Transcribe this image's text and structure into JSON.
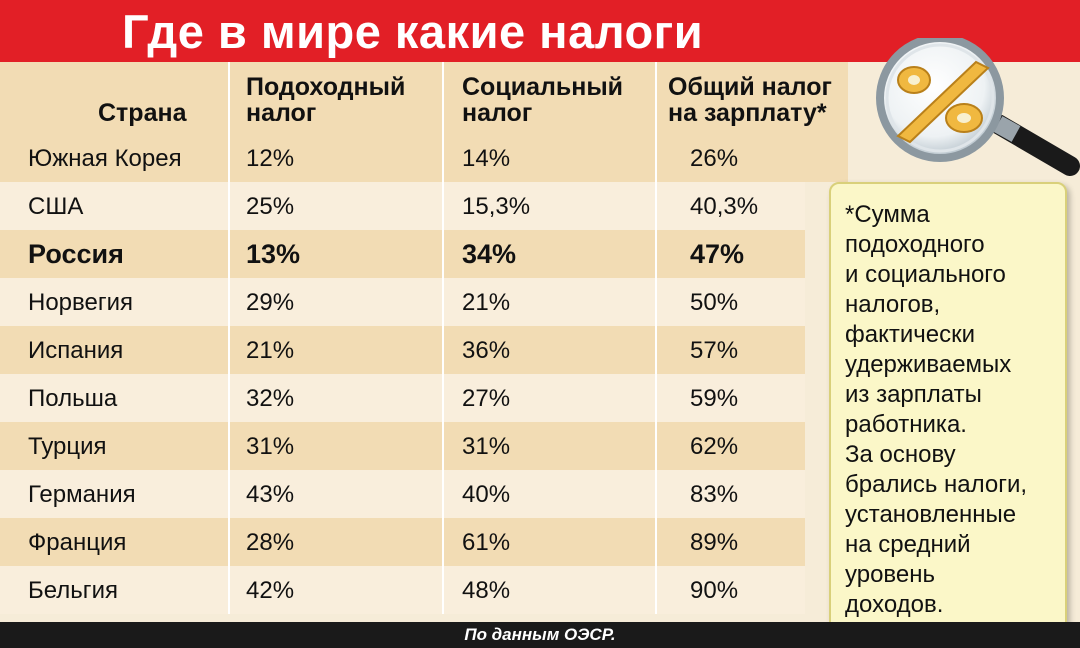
{
  "title": "Где в мире какие налоги",
  "source": "По данным ОЭСР.",
  "note": "*Сумма\nподоходного\nи социального\nналогов,\nфактически\nудерживаемых\nиз зарплаты\nработника.\nЗа основу\nбрались налоги,\nустановленные\nна средний\nуровень\nдоходов.",
  "colors": {
    "banner": "#e21f26",
    "row_dark": "#f2dcb4",
    "row_light": "#f9eedc",
    "note_bg": "#fbf7c8"
  },
  "icons": [
    "magnifier-percent-icon"
  ],
  "chart_data": {
    "type": "table",
    "title": "Где в мире какие налоги",
    "columns": [
      "Страна",
      "Подоходный налог",
      "Социальный налог",
      "Общий налог на зарплату*"
    ],
    "rows": [
      {
        "country": "Южная Корея",
        "income": "12%",
        "social": "14%",
        "total": "26%"
      },
      {
        "country": "США",
        "income": "25%",
        "social": "15,3%",
        "total": "40,3%"
      },
      {
        "country": "Россия",
        "income": "13%",
        "social": "34%",
        "total": "47%",
        "highlight": true
      },
      {
        "country": "Норвегия",
        "income": "29%",
        "social": "21%",
        "total": "50%"
      },
      {
        "country": "Испания",
        "income": "21%",
        "social": "36%",
        "total": "57%"
      },
      {
        "country": "Польша",
        "income": "32%",
        "social": "27%",
        "total": "59%"
      },
      {
        "country": "Турция",
        "income": "31%",
        "social": "31%",
        "total": "62%"
      },
      {
        "country": "Германия",
        "income": "43%",
        "social": "40%",
        "total": "83%"
      },
      {
        "country": "Франция",
        "income": "28%",
        "social": "61%",
        "total": "89%"
      },
      {
        "country": "Бельгия",
        "income": "42%",
        "social": "48%",
        "total": "90%"
      }
    ]
  }
}
